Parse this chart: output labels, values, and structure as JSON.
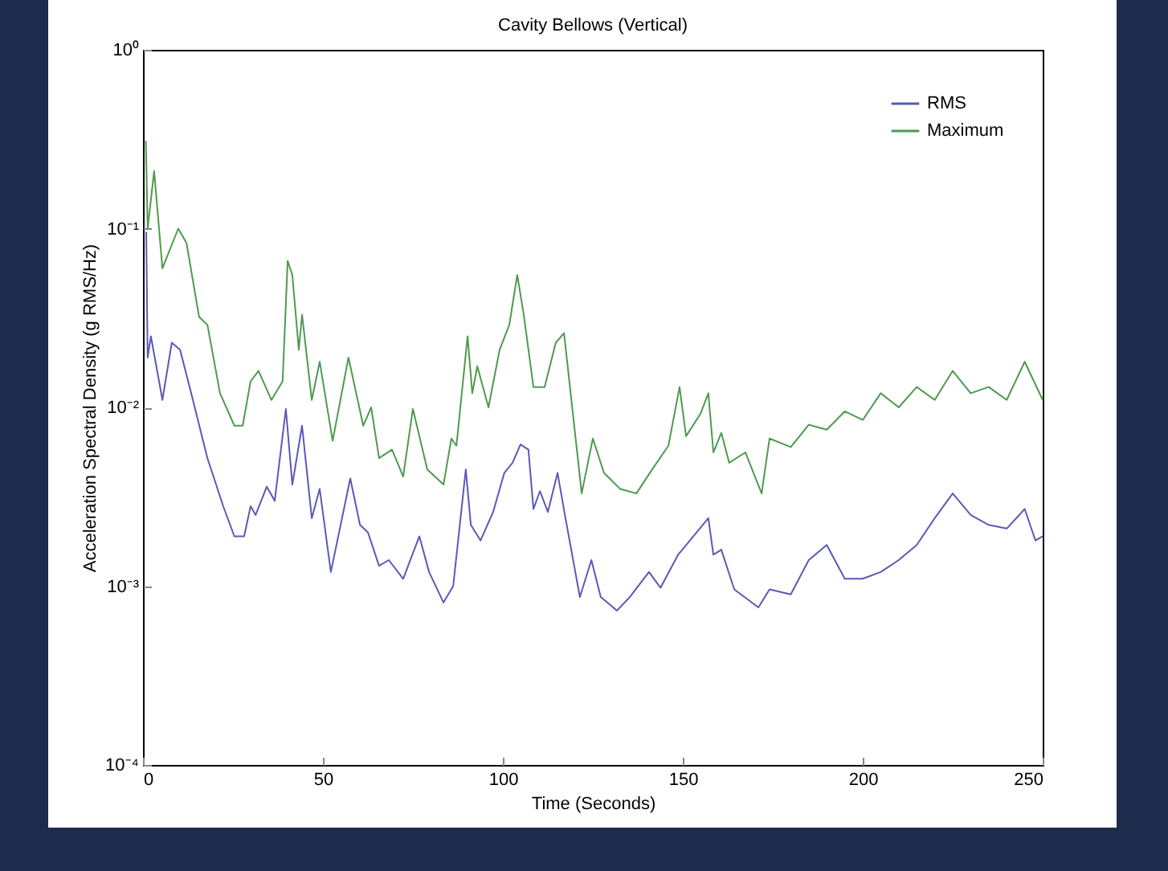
{
  "chart_data": {
    "type": "line",
    "title": "Cavity Bellows (Vertical)",
    "xlabel": "Time (Seconds)",
    "ylabel": "Acceleration Spectral Density (g RMS/Hz)",
    "log": "y",
    "xlim": [
      0,
      250
    ],
    "xticks": [
      0,
      50,
      100,
      150,
      200,
      250
    ],
    "ylim": [
      0.0001,
      1
    ],
    "yticks": [
      {
        "value": 0.0001,
        "label": "10⁻⁴"
      },
      {
        "value": 0.001,
        "label": "10⁻³"
      },
      {
        "value": 0.01,
        "label": "10⁻²"
      },
      {
        "value": 0.1,
        "label": "10⁻¹"
      },
      {
        "value": 1,
        "label": "10⁰"
      }
    ],
    "grid": false,
    "legend": "top right",
    "line_style": "solid",
    "series": [
      {
        "name": "RMS",
        "color": "#5a5ab4",
        "x": [
          0.9,
          1.3,
          2.2,
          5.4,
          8.0,
          10.3,
          13.4,
          17.9,
          22.3,
          25.4,
          28.1,
          29.9,
          31.3,
          34.4,
          36.6,
          39.7,
          41.5,
          44.2,
          46.9,
          49.1,
          52.2,
          57.6,
          60.3,
          62.5,
          65.6,
          68.3,
          72.3,
          76.8,
          79.5,
          83.5,
          86.2,
          89.7,
          91.1,
          93.8,
          97.3,
          100.4,
          102.7,
          104.9,
          107.1,
          108.5,
          110.3,
          112.5,
          115.2,
          117.4,
          121.4,
          124.6,
          127.2,
          131.7,
          135.3,
          140.6,
          143.8,
          148.7,
          157.1,
          158.5,
          160.7,
          164.3,
          171.0,
          174.1,
          180,
          185,
          190,
          195,
          200,
          205,
          210,
          215,
          220,
          225,
          230,
          235,
          240,
          245,
          248,
          250
        ],
        "values": [
          0.096,
          0.019,
          0.025,
          0.011,
          0.023,
          0.021,
          0.012,
          0.0052,
          0.0028,
          0.0019,
          0.0019,
          0.0028,
          0.0025,
          0.0036,
          0.003,
          0.0098,
          0.0037,
          0.0079,
          0.0024,
          0.0035,
          0.0012,
          0.004,
          0.0022,
          0.002,
          0.0013,
          0.0014,
          0.0011,
          0.0019,
          0.0012,
          0.00081,
          0.001,
          0.0045,
          0.0022,
          0.0018,
          0.0026,
          0.0043,
          0.0049,
          0.0062,
          0.0058,
          0.0027,
          0.0034,
          0.0026,
          0.0043,
          0.0024,
          0.00087,
          0.0014,
          0.00087,
          0.00073,
          0.00087,
          0.0012,
          0.00098,
          0.0015,
          0.0024,
          0.0015,
          0.0016,
          0.00096,
          0.00076,
          0.00096,
          0.0009,
          0.0014,
          0.0017,
          0.0011,
          0.0011,
          0.0012,
          0.0014,
          0.0017,
          0.0024,
          0.0033,
          0.0025,
          0.0022,
          0.0021,
          0.0027,
          0.0018,
          0.0019
        ]
      },
      {
        "name": "Maximum",
        "color": "#4f9a4f",
        "x": [
          0.8,
          1.3,
          3.1,
          5.4,
          9.8,
          12.1,
          15.6,
          17.9,
          21.4,
          25.4,
          27.7,
          29.9,
          32.1,
          35.7,
          38.8,
          40.2,
          41.5,
          43.3,
          44.2,
          46.9,
          49.1,
          52.7,
          57.1,
          61.2,
          63.4,
          65.6,
          69.2,
          72.3,
          75.0,
          79.0,
          83.5,
          85.7,
          87.1,
          90.2,
          91.5,
          92.9,
          96.0,
          99.1,
          101.8,
          104.0,
          105.8,
          108.5,
          111.6,
          114.7,
          117.0,
          121.9,
          125.0,
          128.1,
          132.6,
          137.1,
          141.5,
          146.0,
          149.1,
          150.9,
          154.9,
          157.1,
          158.5,
          160.7,
          162.9,
          167.4,
          171.9,
          174.1,
          180,
          185,
          190,
          195,
          200,
          205,
          210,
          215,
          220,
          225,
          230,
          235,
          240,
          245,
          250
        ],
        "values": [
          0.31,
          0.1,
          0.21,
          0.06,
          0.1,
          0.083,
          0.032,
          0.029,
          0.012,
          0.0079,
          0.0079,
          0.014,
          0.016,
          0.011,
          0.014,
          0.066,
          0.055,
          0.021,
          0.033,
          0.011,
          0.018,
          0.0065,
          0.019,
          0.0079,
          0.01,
          0.0052,
          0.0058,
          0.0041,
          0.0098,
          0.0045,
          0.0037,
          0.0067,
          0.0061,
          0.025,
          0.012,
          0.017,
          0.01,
          0.021,
          0.029,
          0.055,
          0.033,
          0.013,
          0.013,
          0.023,
          0.026,
          0.0033,
          0.0067,
          0.0043,
          0.0035,
          0.0033,
          0.0045,
          0.0061,
          0.013,
          0.0069,
          0.0092,
          0.012,
          0.0056,
          0.0072,
          0.0049,
          0.0056,
          0.0033,
          0.0067,
          0.006,
          0.008,
          0.0075,
          0.0095,
          0.0085,
          0.012,
          0.01,
          0.013,
          0.011,
          0.016,
          0.012,
          0.013,
          0.011,
          0.018,
          0.011
        ]
      }
    ]
  }
}
